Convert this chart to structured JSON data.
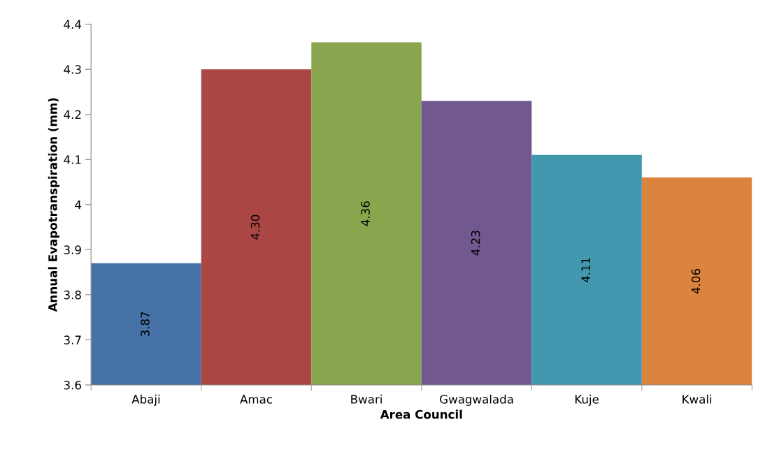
{
  "chart_data": {
    "type": "bar",
    "xlabel": "Area Council",
    "ylabel": "Annual Evapotranspiration (mm)",
    "categories": [
      "Abaji",
      "Amac",
      "Bwari",
      "Gwagwalada",
      "Kuje",
      "Kwali"
    ],
    "values": [
      3.87,
      4.3,
      4.36,
      4.23,
      4.11,
      4.06
    ],
    "value_labels": [
      "3.87",
      "4.30",
      "4.36",
      "4.23",
      "4.11",
      "4.06"
    ],
    "colors": [
      "#4672a8",
      "#aa4644",
      "#89a54e",
      "#71588f",
      "#4198af",
      "#db843d"
    ],
    "ylim": [
      3.6,
      4.4
    ],
    "yticks": [
      3.6,
      3.7,
      3.8,
      3.9,
      4,
      4.1,
      4.2,
      4.3,
      4.4
    ],
    "grid": false,
    "legend": false
  }
}
